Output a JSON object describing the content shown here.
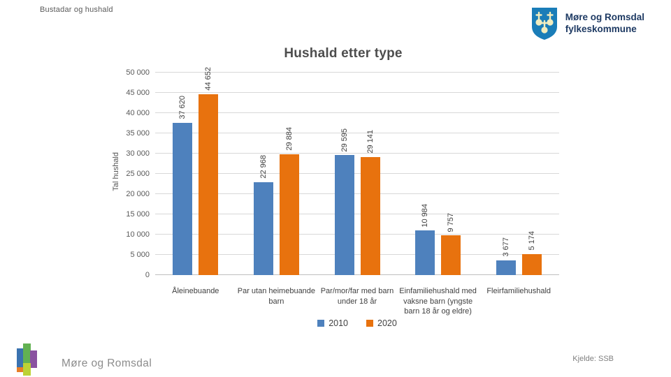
{
  "slide": {
    "header": "Bustadar og hushald",
    "footer_left": "Møre og Romsdal",
    "footer_right": "Kjelde: SSB"
  },
  "brand": {
    "line1": "Møre og Romsdal",
    "line2": "fylkeskommune"
  },
  "colors": {
    "bar_2010": "#4E81BD",
    "bar_2020": "#E8720E",
    "shield_blue": "#1A7DB8",
    "shield_gold": "#F2EDBF",
    "brand_navy": "#1E3A63",
    "gridline": "#D8D8D8",
    "footer_mark": [
      "#3A72B0",
      "#62B152",
      "#8A52A0",
      "#E87E26",
      "#BCD235"
    ]
  },
  "chart_data": {
    "type": "bar",
    "title": "Hushald etter type",
    "xlabel": "",
    "ylabel": "Tal hushald",
    "ylim": [
      0,
      50000
    ],
    "ytick_step": 5000,
    "ytick_labels": [
      "0",
      "5 000",
      "10 000",
      "15 000",
      "20 000",
      "25 000",
      "30 000",
      "35 000",
      "40 000",
      "45 000",
      "50 000"
    ],
    "grid": true,
    "legend_position": "bottom",
    "categories": [
      "Åleinebuande",
      "Par utan heimebuande barn",
      "Par/mor/far med barn under 18 år",
      "Einfamiliehushald med vaksne barn (yngste barn 18 år og eldre)",
      "Fleirfamiliehushald"
    ],
    "series": [
      {
        "name": "2010",
        "color": "#4E81BD",
        "values": [
          37620,
          22968,
          29595,
          10984,
          3677
        ],
        "labels": [
          "37 620",
          "22 968",
          "29 595",
          "10 984",
          "3 677"
        ]
      },
      {
        "name": "2020",
        "color": "#E8720E",
        "values": [
          44652,
          29884,
          29141,
          9757,
          5174
        ],
        "labels": [
          "44 652",
          "29 884",
          "29 141",
          "9 757",
          "5 174"
        ]
      }
    ]
  }
}
